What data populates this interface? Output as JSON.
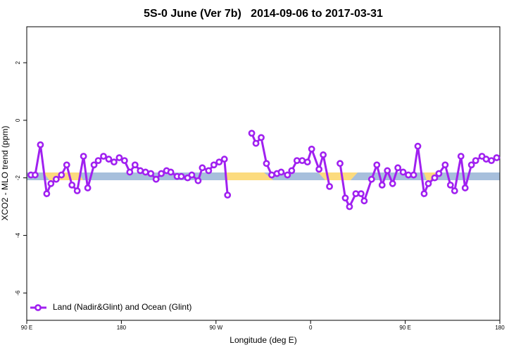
{
  "chart_data": {
    "type": "line",
    "title": "5S-0 June (Ver 7b)   2014-09-06 to 2017-03-31",
    "x_label": "Longitude (deg E)",
    "y_label": "XCO2 - MLO trend (ppm)",
    "xlim": [
      90,
      540
    ],
    "ylim": [
      -6.95,
      3.25
    ],
    "xticks": [
      {
        "value": 90,
        "label": "90 E"
      },
      180,
      {
        "value": 270,
        "label": "90 W"
      },
      {
        "value": 360,
        "label": "0"
      },
      {
        "value": 450,
        "label": "90 E"
      },
      {
        "value": 540,
        "label": "180"
      }
    ],
    "yticks": [
      2,
      0,
      -2,
      -4,
      -6
    ],
    "legend": "bottom-left",
    "series": [
      {
        "name": "Land (Nadir&Glint) and Ocean (Glint)",
        "color": "#a020f0",
        "x": [
          94,
          98,
          103,
          109,
          113,
          118,
          123,
          128,
          133,
          138,
          144,
          148,
          154,
          158,
          163,
          168,
          173,
          178,
          183,
          188,
          193,
          198,
          203,
          208,
          213,
          218,
          223,
          227,
          233,
          237,
          243,
          247,
          253,
          257,
          263,
          268,
          273,
          278,
          281,
          290,
          304,
          308,
          313,
          318,
          323,
          328,
          332,
          338,
          342,
          347,
          352,
          357,
          361,
          368,
          372,
          378,
          383,
          388,
          393,
          397,
          403,
          408,
          411,
          418,
          423,
          428,
          433,
          438,
          443,
          448,
          453,
          458,
          462,
          468,
          472,
          478,
          482,
          488,
          493,
          497,
          503,
          507,
          513,
          517,
          523,
          527,
          532,
          537
        ],
        "values": [
          -1.9,
          -1.9,
          -0.85,
          -2.55,
          -2.2,
          -2.05,
          -1.9,
          -1.55,
          -2.25,
          -2.45,
          -1.25,
          -2.35,
          -1.55,
          -1.4,
          -1.25,
          -1.35,
          -1.45,
          -1.3,
          -1.4,
          -1.8,
          -1.55,
          -1.75,
          -1.8,
          -1.85,
          -2.05,
          -1.85,
          -1.75,
          -1.8,
          -1.95,
          -1.95,
          -2.0,
          -1.9,
          -2.1,
          -1.65,
          -1.75,
          -1.55,
          -1.45,
          -1.35,
          -2.6,
          null,
          -0.45,
          -0.8,
          -0.6,
          -1.5,
          -1.9,
          -1.85,
          -1.8,
          -1.9,
          -1.75,
          -1.4,
          -1.4,
          -1.45,
          -1.0,
          -1.7,
          -1.2,
          -2.3,
          null,
          -1.5,
          -2.7,
          -3.0,
          -2.55,
          -2.55,
          -2.8,
          -2.05,
          -1.55,
          -2.25,
          -1.75,
          -2.2,
          -1.65,
          -1.8,
          -1.9,
          -1.9,
          -0.9,
          -2.55,
          -2.2,
          -2.0,
          -1.85,
          -1.55,
          -2.25,
          -2.45,
          -1.25,
          -2.35,
          -1.55,
          -1.4,
          -1.25,
          -1.35,
          -1.4,
          -1.3
        ]
      }
    ]
  }
}
